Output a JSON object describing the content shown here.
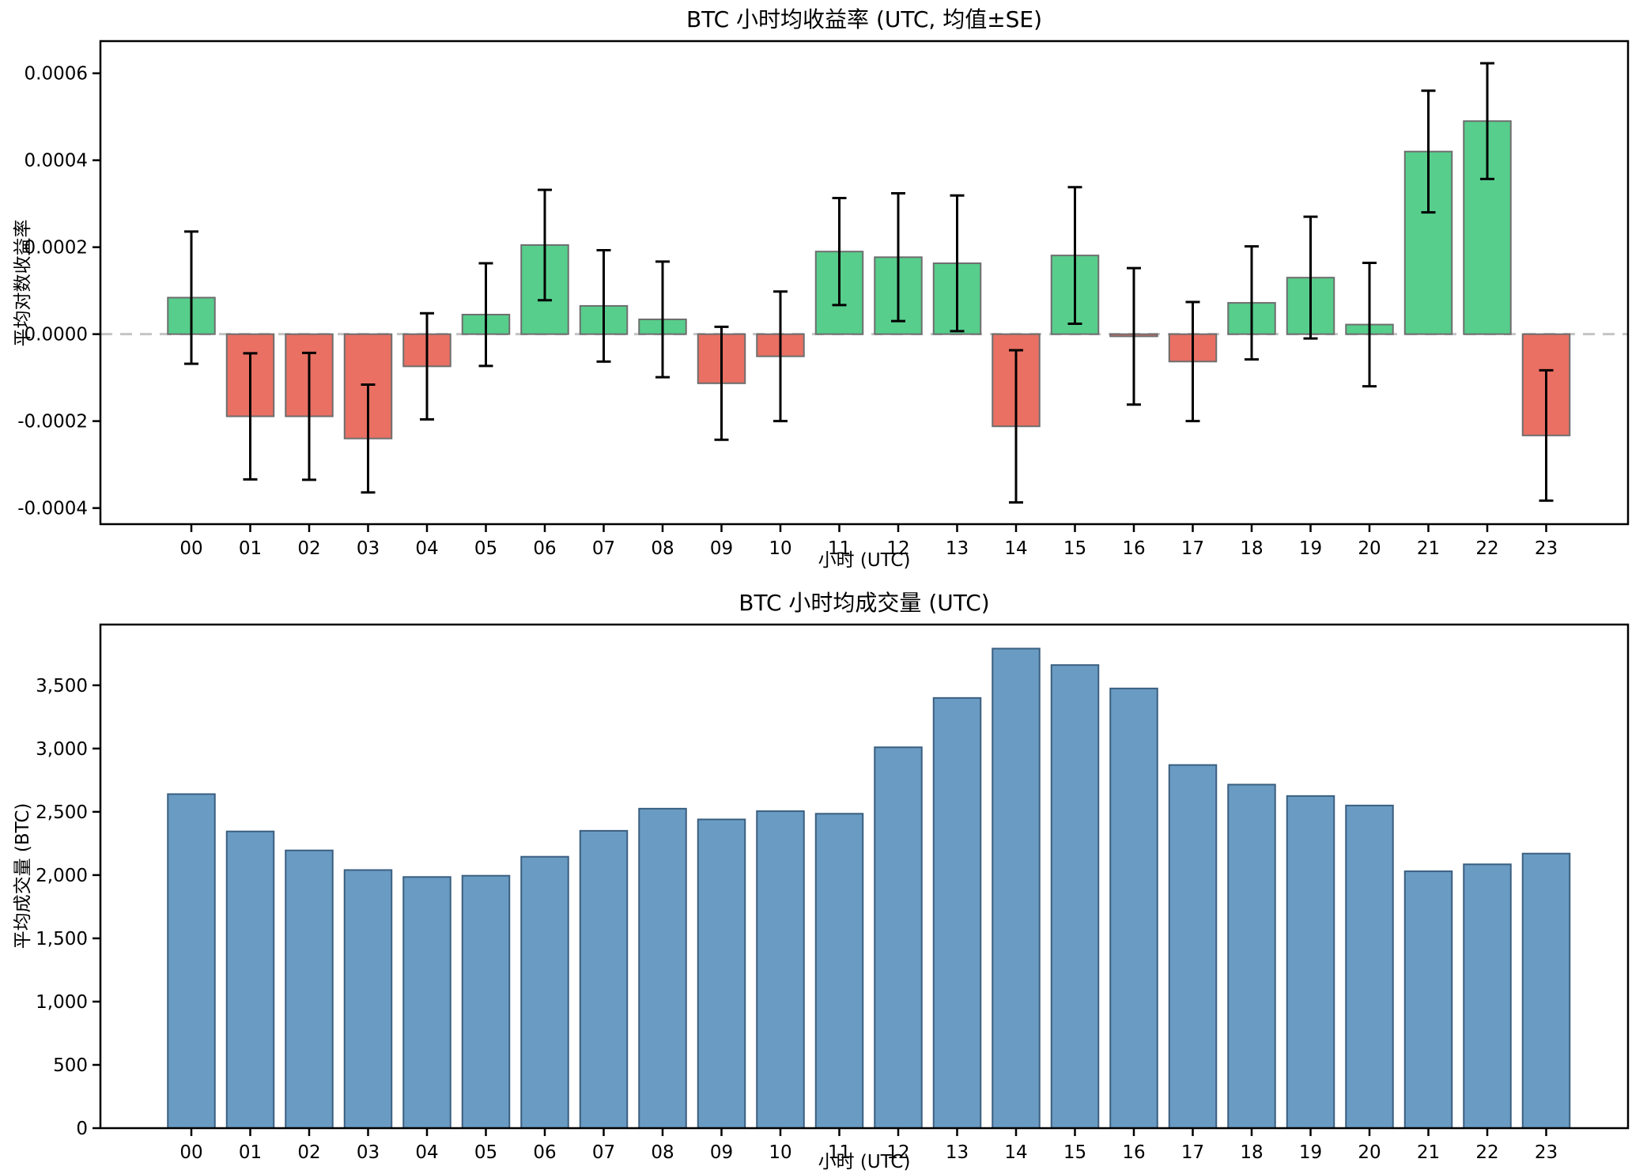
{
  "figure": {
    "background": "#ffffff"
  },
  "chart_data": [
    {
      "type": "bar",
      "title": "BTC 小时均收益率 (UTC, 均值±SE)",
      "xlabel": "小时 (UTC)",
      "ylabel": "平均对数收益率",
      "categories": [
        "00",
        "01",
        "02",
        "03",
        "04",
        "05",
        "06",
        "07",
        "08",
        "09",
        "10",
        "11",
        "12",
        "13",
        "14",
        "15",
        "16",
        "17",
        "18",
        "19",
        "20",
        "21",
        "22",
        "23"
      ],
      "values": [
        8.4e-05,
        -0.000189,
        -0.000189,
        -0.00024,
        -7.4e-05,
        4.5e-05,
        0.000205,
        6.5e-05,
        3.4e-05,
        -0.000113,
        -5.1e-05,
        0.00019,
        0.000177,
        0.000163,
        -0.000212,
        0.000181,
        -5e-06,
        -6.3e-05,
        7.2e-05,
        0.00013,
        2.2e-05,
        0.00042,
        0.00049,
        -0.000233
      ],
      "errors": [
        0.000152,
        0.000145,
        0.000146,
        0.000124,
        0.000122,
        0.000118,
        0.000127,
        0.000128,
        0.000133,
        0.00013,
        0.000149,
        0.000123,
        0.000147,
        0.000156,
        0.000175,
        0.000157,
        0.000157,
        0.000137,
        0.00013,
        0.00014,
        0.000142,
        0.00014,
        0.000133,
        0.00015
      ],
      "ylim": [
        -0.000437,
        0.000674
      ],
      "yticks": [
        0.0006,
        0.0004,
        0.0002,
        0.0,
        -0.0002,
        -0.0004
      ],
      "yticklabels": [
        "0.0006",
        "0.0004",
        "0.0002",
        "0.0000",
        "-0.0002",
        "-0.0004"
      ],
      "grid": false,
      "legend": null,
      "zero_line": true,
      "colors": {
        "positive": "#57CE8C",
        "negative": "#E97063",
        "bar_edge": "#6e6e6e",
        "error_bar": "#000000",
        "zero_line": "#c4c4c4"
      }
    },
    {
      "type": "bar",
      "title": "BTC 小时均成交量 (UTC)",
      "xlabel": "小时 (UTC)",
      "ylabel": "平均成交量 (BTC)",
      "categories": [
        "00",
        "01",
        "02",
        "03",
        "04",
        "05",
        "06",
        "07",
        "08",
        "09",
        "10",
        "11",
        "12",
        "13",
        "14",
        "15",
        "16",
        "17",
        "18",
        "19",
        "20",
        "21",
        "22",
        "23"
      ],
      "values": [
        2640,
        2345,
        2195,
        2040,
        1985,
        1995,
        2145,
        2350,
        2525,
        2440,
        2505,
        2485,
        3010,
        3400,
        3790,
        3660,
        3475,
        2870,
        2715,
        2625,
        2550,
        2030,
        2085,
        2170
      ],
      "ylim": [
        0,
        3980
      ],
      "yticks": [
        0,
        500,
        1000,
        1500,
        2000,
        2500,
        3000,
        3500
      ],
      "yticklabels": [
        "0",
        "500",
        "1,000",
        "1,500",
        "2,000",
        "2,500",
        "3,000",
        "3,500"
      ],
      "grid": false,
      "legend": null,
      "zero_line": false,
      "colors": {
        "bar": "#6A9BC3",
        "bar_edge": "#3A5F80"
      }
    }
  ]
}
